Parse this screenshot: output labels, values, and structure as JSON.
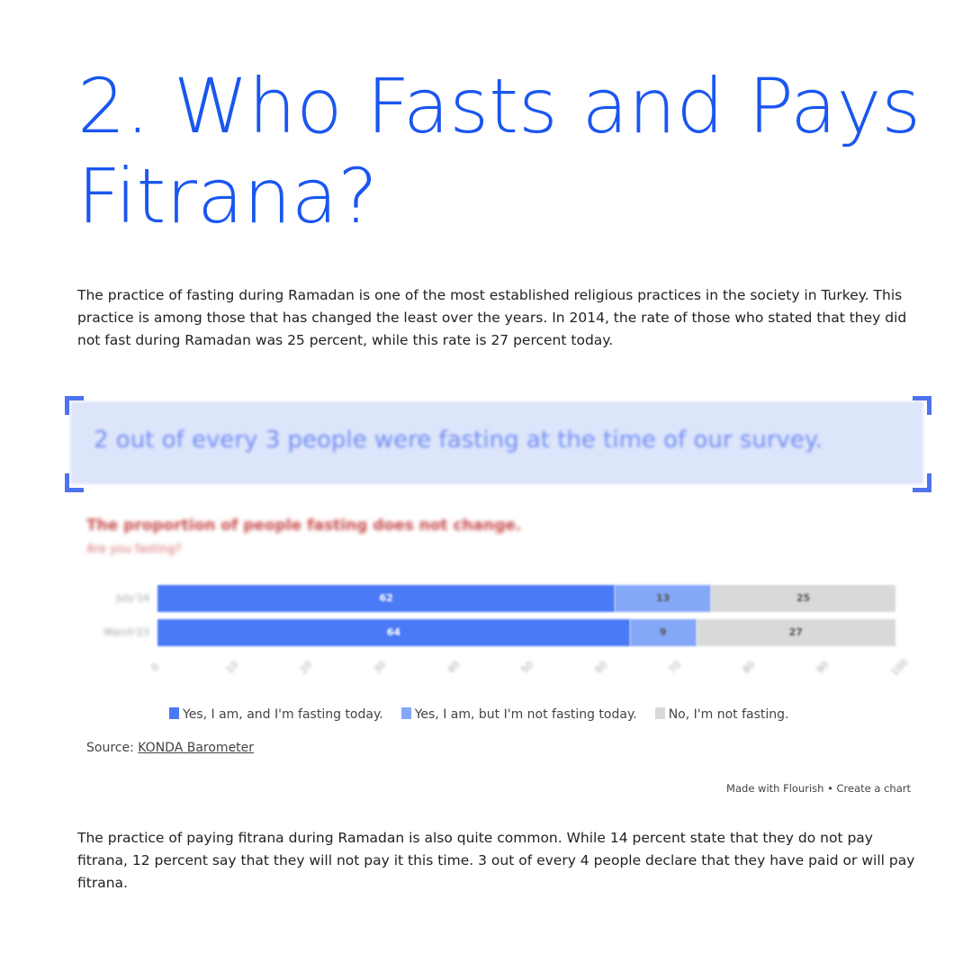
{
  "title": "2. Who Fasts and Pays Fitrana?",
  "paragraph1": "The practice of fasting during Ramadan is one of the most established religious practices in the society in Turkey. This practice is among those that has changed the least over the years. In 2014, the rate of those who stated that they did not fast during Ramadan was 25 percent, while this rate is 27 percent today.",
  "quote": "2 out of every 3 people were fasting at the time of our survey.",
  "chart_data": {
    "type": "bar",
    "orientation": "horizontal-stacked",
    "title": "The proportion of people fasting does not change.",
    "subtitle": "Are you fasting?",
    "categories": [
      "July'14",
      "March'23"
    ],
    "series": [
      {
        "name": "Yes, I am, and I'm fasting today.",
        "values": [
          62,
          64
        ],
        "color": "#4a7af5"
      },
      {
        "name": "Yes, I am, but I'm not fasting today.",
        "values": [
          13,
          9
        ],
        "color": "#84a8f7"
      },
      {
        "name": "No, I'm not fasting.",
        "values": [
          25,
          27
        ],
        "color": "#d9d9d9"
      }
    ],
    "xlim": [
      0,
      100
    ],
    "xticks": [
      "0",
      "10",
      "20",
      "30",
      "40",
      "50",
      "60",
      "70",
      "80",
      "90",
      "100"
    ],
    "legend": "bottom"
  },
  "source_label": "Source:",
  "source_link": "KONDA Barometer",
  "made_with": "Made with Flourish • Create a chart",
  "paragraph2": "The practice of paying fitrana during Ramadan is also quite common. While 14 percent state that they do not pay fitrana, 12 percent say that they will not pay it this time. 3 out of every 4 people declare that they have paid or will pay fitrana."
}
